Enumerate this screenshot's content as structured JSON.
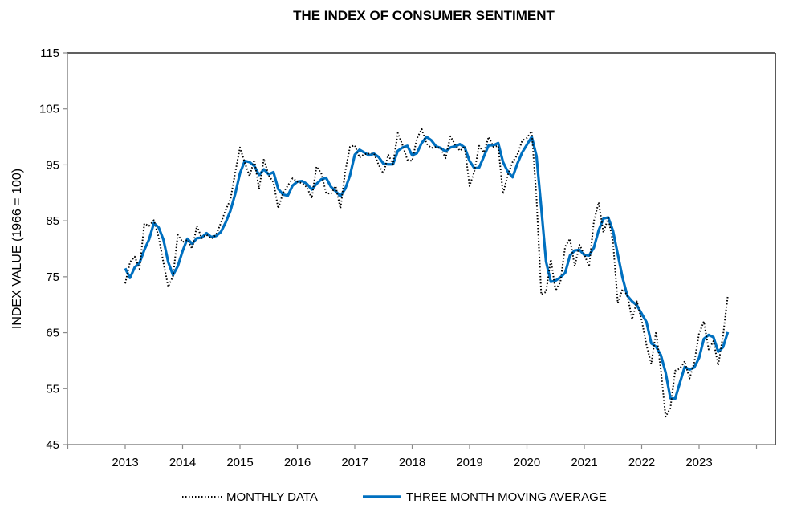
{
  "chart_data": {
    "type": "line",
    "title": "THE INDEX OF CONSUMER SENTIMENT",
    "xlabel": "",
    "ylabel": "INDEX VALUE (1966 = 100)",
    "ylim": [
      45,
      115
    ],
    "yticks": [
      115,
      105,
      95,
      85,
      75,
      65,
      55,
      45
    ],
    "xlim": [
      "2012-01",
      "2024-12"
    ],
    "xticks": [
      "2013",
      "2014",
      "2015",
      "2016",
      "2017",
      "2018",
      "2019",
      "2020",
      "2021",
      "2022",
      "2023"
    ],
    "grid": false,
    "legend_position": "bottom",
    "x_start": "2013-01",
    "x_end": "2023-07",
    "frequency": "monthly",
    "series": [
      {
        "name": "MONTHLY DATA",
        "style": "dotted",
        "color": "#000000",
        "values": [
          73.8,
          77.6,
          78.6,
          76.4,
          84.5,
          84.1,
          85.1,
          82.1,
          77.5,
          73.2,
          75.1,
          82.5,
          81.2,
          81.6,
          80.0,
          84.1,
          81.9,
          82.5,
          81.8,
          82.5,
          84.6,
          86.9,
          88.8,
          93.6,
          98.1,
          95.4,
          93.0,
          95.9,
          90.7,
          96.1,
          93.1,
          91.9,
          87.2,
          90.0,
          91.3,
          92.6,
          92.0,
          91.7,
          91.0,
          89.0,
          94.7,
          93.5,
          90.0,
          89.8,
          91.2,
          87.2,
          93.8,
          98.2,
          98.5,
          96.3,
          96.9,
          97.0,
          97.1,
          95.0,
          93.4,
          96.8,
          95.1,
          100.7,
          98.5,
          95.9,
          95.7,
          99.7,
          101.4,
          98.8,
          98.0,
          98.2,
          97.9,
          96.2,
          100.1,
          98.6,
          97.5,
          98.3,
          91.2,
          93.8,
          98.4,
          97.2,
          100.0,
          98.2,
          98.4,
          89.8,
          93.2,
          95.5,
          96.8,
          99.3,
          99.8,
          101.0,
          89.1,
          71.8,
          72.3,
          78.1,
          72.5,
          74.1,
          80.4,
          81.8,
          76.9,
          80.7,
          79.0,
          76.8,
          84.9,
          88.3,
          82.9,
          85.5,
          81.2,
          70.3,
          72.8,
          71.7,
          67.4,
          70.6,
          67.2,
          62.8,
          59.4,
          65.2,
          58.4,
          50.0,
          51.5,
          58.2,
          58.6,
          59.9,
          56.8,
          59.7,
          64.9,
          67.0,
          62.0,
          63.5,
          59.2,
          64.4,
          71.6
        ]
      },
      {
        "name": "THREE MONTH MOVING AVERAGE",
        "style": "solid",
        "color": "#0070C0",
        "values": [
          76.5,
          74.8,
          76.7,
          77.5,
          79.8,
          81.7,
          84.6,
          83.8,
          81.6,
          77.6,
          75.3,
          76.9,
          79.6,
          81.8,
          80.9,
          81.9,
          82.0,
          82.8,
          82.1,
          82.3,
          83.0,
          84.7,
          86.8,
          89.8,
          93.5,
          95.7,
          95.5,
          94.8,
          93.2,
          94.2,
          93.3,
          93.7,
          90.7,
          89.7,
          89.5,
          91.3,
          92.0,
          92.1,
          91.6,
          90.6,
          91.6,
          92.4,
          92.7,
          91.1,
          90.3,
          89.4,
          90.7,
          93.1,
          96.8,
          97.7,
          97.2,
          96.7,
          97.0,
          96.4,
          95.2,
          95.1,
          95.1,
          97.5,
          98.1,
          98.4,
          96.7,
          97.1,
          98.9,
          100.0,
          99.4,
          98.3,
          98.0,
          97.4,
          98.1,
          98.3,
          98.7,
          98.1,
          95.7,
          94.4,
          94.5,
          96.5,
          98.5,
          98.5,
          98.9,
          95.5,
          93.8,
          92.8,
          95.2,
          97.2,
          98.6,
          100.0,
          96.6,
          87.3,
          77.7,
          74.1,
          74.3,
          74.9,
          75.7,
          78.8,
          79.7,
          79.8,
          78.9,
          78.8,
          80.2,
          83.3,
          85.4,
          85.6,
          83.2,
          79.0,
          74.8,
          71.6,
          70.6,
          69.9,
          68.4,
          66.9,
          63.1,
          62.5,
          61.0,
          57.9,
          53.3,
          53.2,
          56.1,
          58.9,
          58.4,
          58.8,
          60.5,
          63.9,
          64.6,
          64.2,
          61.6,
          62.4,
          65.1
        ]
      }
    ]
  }
}
